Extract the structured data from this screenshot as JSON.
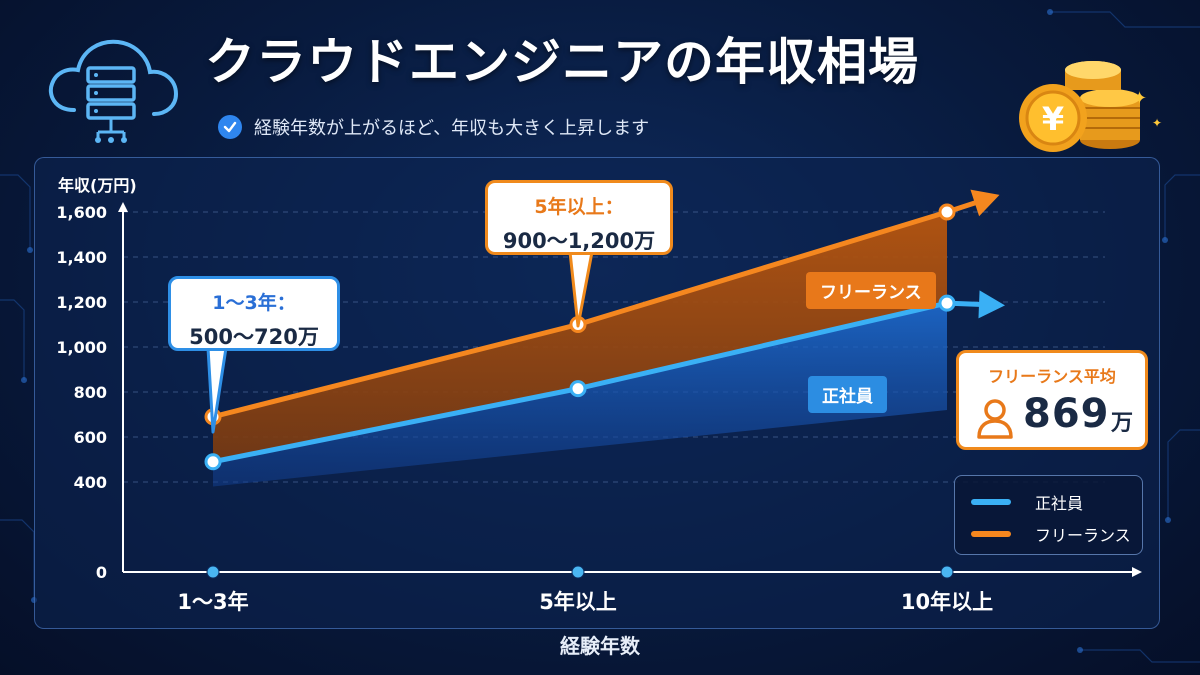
{
  "header": {
    "title": "クラウドエンジニアの年収相場",
    "subtitle": "経験年数が上がるほど、年収も大きく上昇します"
  },
  "icons": {
    "cloud": "cloud-server-icon",
    "check": "check-circle-icon",
    "coins": "yen-coins-icon",
    "person": "person-icon"
  },
  "callouts": {
    "regular": {
      "line1": "1〜3年：",
      "line2": "500〜720万"
    },
    "freelance": {
      "line1": "5年以上：",
      "line2": "900〜1,200万"
    }
  },
  "tags": {
    "freelance": "フリーランス",
    "regular": "正社員"
  },
  "average": {
    "label": "フリーランス平均",
    "value": "869",
    "unit": "万"
  },
  "legend": {
    "regular": "正社員",
    "freelance": "フリーランス"
  },
  "colors": {
    "regular": "#3ab0f5",
    "freelance": "#f5871f",
    "background": "#081a3d"
  },
  "chart_data": {
    "type": "line",
    "title": "",
    "ylabel": "年収(万円)",
    "xlabel": "経験年数",
    "categories": [
      "1〜3年",
      "5年以上",
      "10年以上"
    ],
    "ylim": [
      0,
      1600
    ],
    "yticks": [
      0,
      400,
      600,
      800,
      1000,
      1200,
      1400,
      1600
    ],
    "ytick_labels": [
      "0",
      "400",
      "600",
      "800",
      "1,000",
      "1,200",
      "1,400",
      "1,600"
    ],
    "grid": true,
    "legend_position": "bottom-right",
    "series": [
      {
        "name": "正社員",
        "values": [
          490,
          815,
          1195
        ],
        "color": "#3ab0f5"
      },
      {
        "name": "フリーランス",
        "values": [
          690,
          1100,
          1600
        ],
        "color": "#f5871f"
      }
    ],
    "band_lower": [
      380,
      550,
      720
    ]
  }
}
